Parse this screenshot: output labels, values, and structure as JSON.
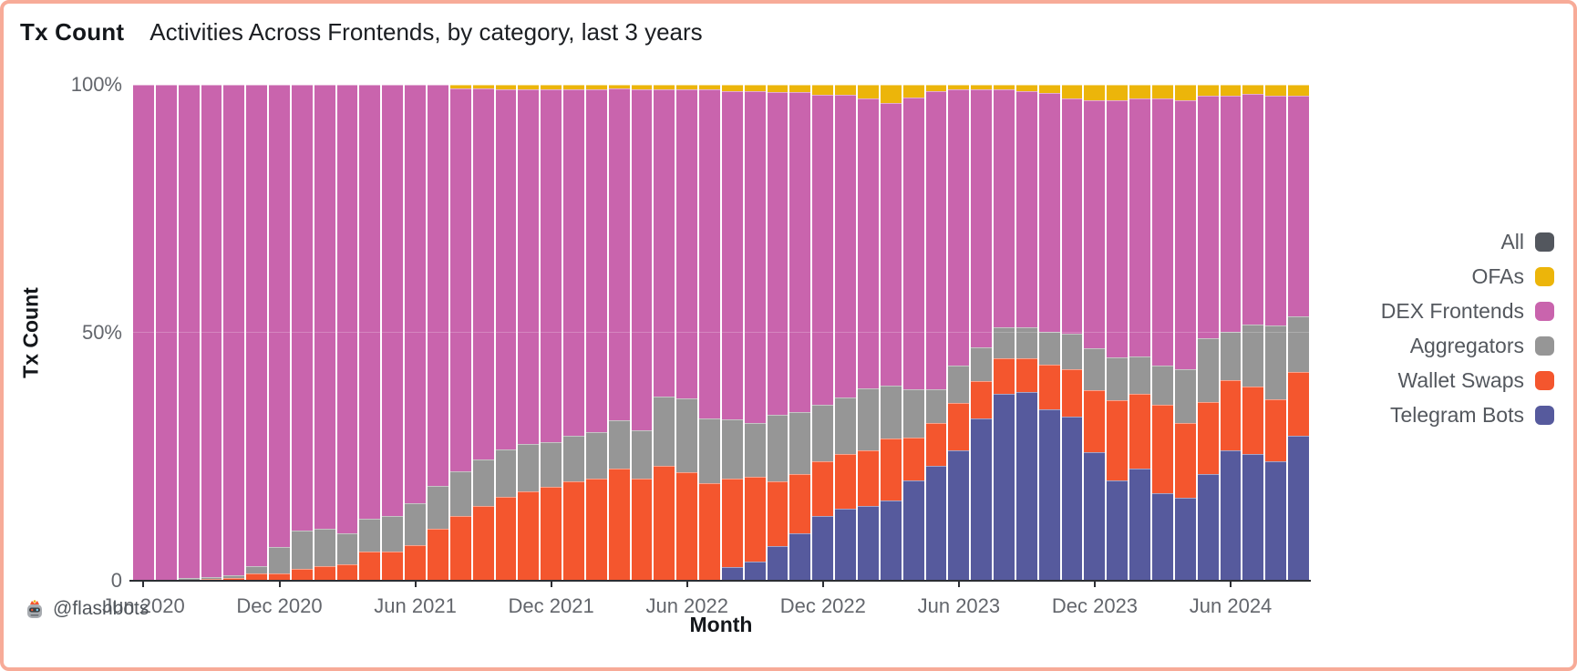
{
  "header": {
    "title": "Tx Count",
    "subtitle": "Activities Across Frontends, by category, last 3 years"
  },
  "axes": {
    "y_title": "Tx Count",
    "x_title": "Month"
  },
  "footer": {
    "watermark": "@flashbots",
    "watermark_icon": "flashbots-robot-icon"
  },
  "colors": {
    "background": "#ffffff",
    "page_border": "#f7ab98",
    "axis_line": "#2c2e33",
    "tick_text": "#63666c",
    "title_text": "#14171b",
    "legend_text": "#54585e",
    "all": "#53575e",
    "ofas": "#ecb50a",
    "dex_frontends": "#c964ad",
    "aggregators": "#969696",
    "wallet_swaps": "#f4562e",
    "telegram_bots": "#565a9d"
  },
  "legend": {
    "position": "right",
    "items": [
      {
        "label": "All",
        "color": "#53575e"
      },
      {
        "label": "OFAs",
        "color": "#ecb50a"
      },
      {
        "label": "DEX Frontends",
        "color": "#c964ad"
      },
      {
        "label": "Aggregators",
        "color": "#969696"
      },
      {
        "label": "Wallet Swaps",
        "color": "#f4562e"
      },
      {
        "label": "Telegram Bots",
        "color": "#565a9d"
      }
    ]
  },
  "chart_data": {
    "type": "bar",
    "subtype": "stacked-percent",
    "title": "Activities Across Frontends, by category, last 3 years",
    "xlabel": "Month",
    "ylabel": "Tx Count",
    "ylim": [
      0,
      100
    ],
    "grid": false,
    "legend_position": "right",
    "y_ticks": [
      {
        "label": "100%",
        "frac": 1
      },
      {
        "label": "50%",
        "frac": 0.5
      },
      {
        "label": "0",
        "frac": 0
      }
    ],
    "x_ticks": [
      {
        "label": "Jun 2020",
        "index": 0
      },
      {
        "label": "Dec 2020",
        "index": 6
      },
      {
        "label": "Jun 2021",
        "index": 12
      },
      {
        "label": "Dec 2021",
        "index": 18
      },
      {
        "label": "Jun 2022",
        "index": 24
      },
      {
        "label": "Dec 2022",
        "index": 30
      },
      {
        "label": "Jun 2023",
        "index": 36
      },
      {
        "label": "Dec 2023",
        "index": 42
      },
      {
        "label": "Jun 2024",
        "index": 48
      }
    ],
    "x": [
      "Jun 2020",
      "Jul 2020",
      "Aug 2020",
      "Sep 2020",
      "Oct 2020",
      "Nov 2020",
      "Dec 2020",
      "Jan 2021",
      "Feb 2021",
      "Mar 2021",
      "Apr 2021",
      "May 2021",
      "Jun 2021",
      "Jul 2021",
      "Aug 2021",
      "Sep 2021",
      "Oct 2021",
      "Nov 2021",
      "Dec 2021",
      "Jan 2022",
      "Feb 2022",
      "Mar 2022",
      "Apr 2022",
      "May 2022",
      "Jun 2022",
      "Jul 2022",
      "Aug 2022",
      "Sep 2022",
      "Oct 2022",
      "Nov 2022",
      "Dec 2022",
      "Jan 2023",
      "Feb 2023",
      "Mar 2023",
      "Apr 2023",
      "May 2023",
      "Jun 2023",
      "Jul 2023",
      "Aug 2023",
      "Sep 2023",
      "Oct 2023",
      "Nov 2023",
      "Dec 2023",
      "Jan 2024",
      "Feb 2024",
      "Mar 2024",
      "Apr 2024",
      "May 2024",
      "Jun 2024",
      "Jul 2024",
      "Aug 2024",
      "Sep 2024"
    ],
    "series": [
      {
        "name": "Telegram Bots",
        "color": "#565a9d",
        "values": [
          0,
          0,
          0,
          0,
          0,
          0,
          0,
          0,
          0,
          0,
          0,
          0,
          0,
          0,
          0,
          0,
          0,
          0,
          0,
          0,
          0,
          0,
          0,
          0,
          0,
          0,
          2.7,
          3.9,
          7,
          9.5,
          13,
          14.5,
          15,
          16.2,
          20.2,
          23.1,
          26.2,
          32.7,
          37.7,
          38,
          34.6,
          33,
          25.9,
          20.2,
          22.7,
          17.6,
          16.8,
          21.5,
          26.2,
          25.5,
          24,
          29.2
        ]
      },
      {
        "name": "Wallet Swaps",
        "color": "#f4562e",
        "values": [
          0,
          0,
          0.2,
          0.3,
          0.6,
          1.5,
          1.4,
          2.4,
          2.9,
          3.4,
          5.8,
          5.9,
          7.2,
          10.5,
          13,
          15,
          17,
          18,
          19,
          20,
          20.5,
          22.7,
          20.6,
          23.1,
          21.8,
          19.6,
          17.8,
          17,
          13,
          12,
          11,
          11,
          11.2,
          12.5,
          8.7,
          8.7,
          9.7,
          7.5,
          7.2,
          6.9,
          9,
          9.7,
          12.5,
          16.2,
          15,
          17.9,
          15,
          14.6,
          14.3,
          13.7,
          12.5,
          12.9
        ]
      },
      {
        "name": "Aggregators",
        "color": "#969696",
        "values": [
          0,
          0,
          0.3,
          0.4,
          0.5,
          1.5,
          5.4,
          7.8,
          7.6,
          6.2,
          6.7,
          7.1,
          8.4,
          8.6,
          9,
          9.5,
          9.5,
          9.5,
          9,
          9.2,
          9.5,
          9.7,
          9.7,
          14,
          15,
          13.1,
          12,
          10.9,
          13.5,
          12.5,
          11.5,
          11.5,
          12.5,
          10.6,
          9.7,
          6.9,
          7.5,
          6.9,
          6.2,
          6.2,
          6.5,
          7.2,
          8.4,
          8.7,
          7.5,
          7.8,
          10.9,
          12.8,
          9.7,
          12.5,
          15,
          11.2
        ]
      },
      {
        "name": "DEX Frontends",
        "color": "#c964ad",
        "values": [
          100,
          100,
          99.5,
          99.3,
          98.9,
          97,
          93.2,
          89.8,
          89.5,
          90.4,
          87.5,
          87,
          84.4,
          80.9,
          77.2,
          74.7,
          72.6,
          71.6,
          71.1,
          69.9,
          69,
          66.9,
          68.7,
          61.9,
          62.2,
          66.3,
          66.3,
          67,
          65,
          64.5,
          62.5,
          61,
          58.5,
          57,
          58.9,
          60.1,
          55.6,
          51.9,
          47.9,
          47.7,
          48.3,
          47.3,
          50.1,
          51.8,
          52,
          53.9,
          54.2,
          48.9,
          47.6,
          46.4,
          46.3,
          44.5
        ]
      },
      {
        "name": "OFAs",
        "color": "#ecb50a",
        "values": [
          0,
          0,
          0,
          0,
          0,
          0,
          0,
          0,
          0,
          0,
          0,
          0,
          0,
          0,
          0.8,
          0.8,
          0.9,
          0.9,
          0.9,
          0.9,
          1,
          0.7,
          1,
          1,
          1,
          1,
          1.2,
          1.2,
          1.5,
          1.5,
          2,
          2,
          2.8,
          3.7,
          2.5,
          1.2,
          1,
          1,
          1,
          1.2,
          1.6,
          2.8,
          3.1,
          3.1,
          2.8,
          2.8,
          3.1,
          2.2,
          2.2,
          1.9,
          2.2,
          2.2
        ]
      }
    ]
  }
}
